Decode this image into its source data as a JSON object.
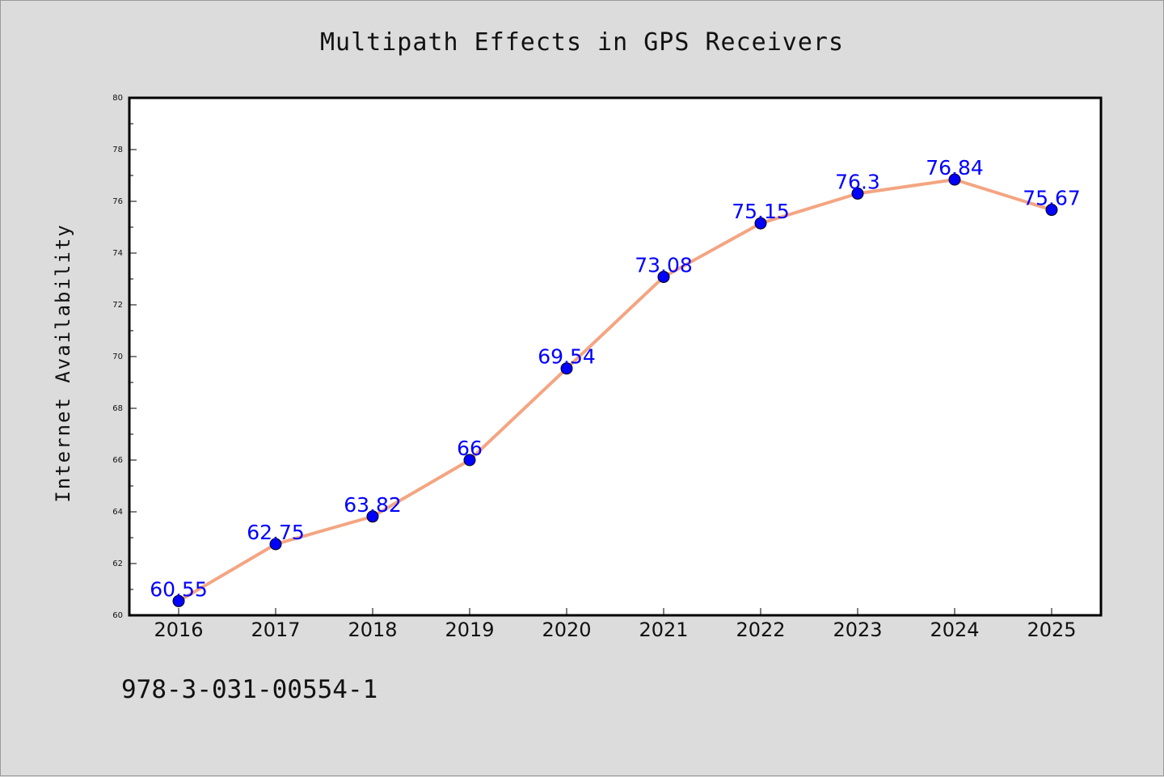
{
  "figure": {
    "footer_text": "978-3-031-00554-1"
  },
  "chart_data": {
    "type": "line",
    "title": "Multipath Effects in GPS Receivers",
    "xlabel": "",
    "ylabel": "Internet Availability",
    "categories": [
      "2016",
      "2017",
      "2018",
      "2019",
      "2020",
      "2021",
      "2022",
      "2023",
      "2024",
      "2025"
    ],
    "series": [
      {
        "values": [
          60.55,
          62.75,
          63.82,
          66,
          69.54,
          73.08,
          75.15,
          76.3,
          76.84,
          75.67
        ],
        "labels": [
          "60.55",
          "62.75",
          "63.82",
          "66",
          "69.54",
          "73.08",
          "75.15",
          "76.3",
          "76.84",
          "75.67"
        ],
        "line_color": "#f4a582",
        "marker_color": "#0000ff"
      }
    ],
    "ylim": [
      60,
      80
    ],
    "y_ticks": [
      60,
      62,
      64,
      66,
      68,
      70,
      72,
      74,
      76,
      78,
      80
    ],
    "y_tick_labels": [
      "60",
      "62",
      "64",
      "66",
      "68",
      "70",
      "72",
      "74",
      "76",
      "78",
      "80"
    ],
    "grid": false,
    "legend": "none",
    "label_color": "#0000ff"
  }
}
